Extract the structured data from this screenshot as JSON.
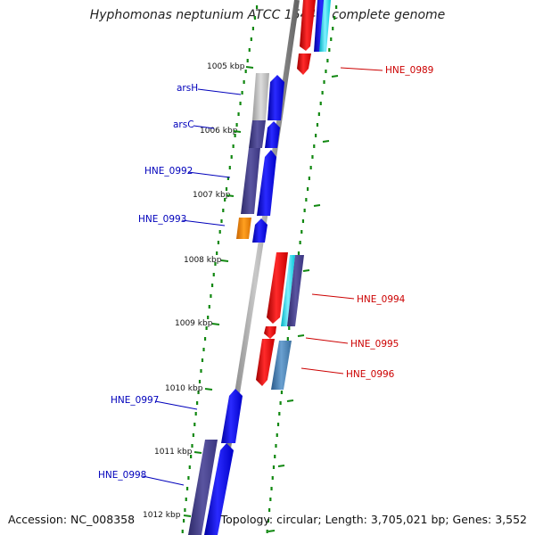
{
  "title": "Hyphomonas neptunium ATCC 15444, complete genome",
  "footer": {
    "accession": "Accession: NC_008358",
    "stats": "Topology: circular; Length: 3,705,021 bp; Genes: 3,552"
  },
  "ticks": [
    "1005 kbp",
    "1006 kbp",
    "1007 kbp",
    "1008 kbp",
    "1009 kbp",
    "1010 kbp",
    "1011 kbp",
    "1012 kbp"
  ],
  "genes_reverse": [
    "arsH",
    "arsC",
    "HNE_0992",
    "HNE_0993",
    "HNE_0997",
    "HNE_0998"
  ],
  "genes_forward": [
    "HNE_0989",
    "HNE_0994",
    "HNE_0995",
    "HNE_0996"
  ],
  "colors": {
    "forward_label": "#cc0000",
    "reverse_label": "#0000bb",
    "forward_cds": "#ee0000",
    "reverse_cds": "#0000ee",
    "backbone": "#888888",
    "dotted_track": "#118811"
  }
}
